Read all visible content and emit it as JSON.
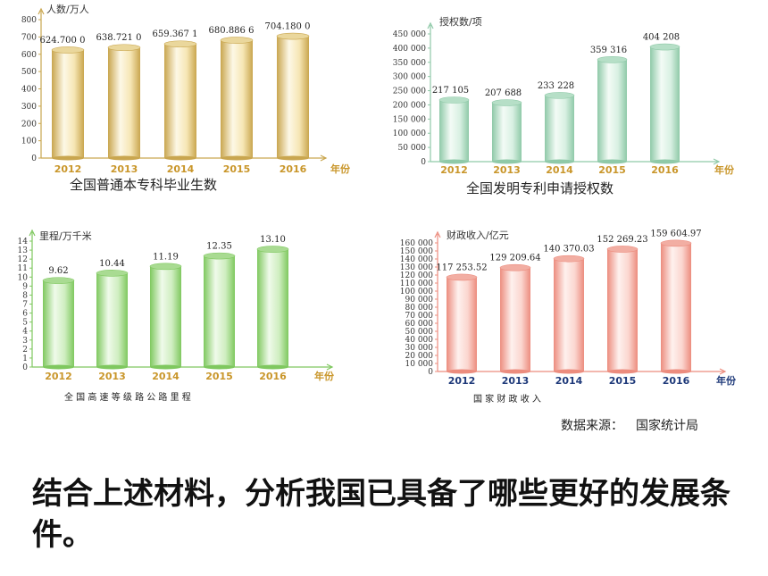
{
  "charts": [
    {
      "id": "graduates",
      "caption": "全国普通本专科毕业生数",
      "style": {
        "bar_dark": "#c9a64f",
        "bar_mid": "#f6e6b4",
        "bar_light": "#fdf8e6",
        "top": "#ead79c",
        "axis": "#c9a64f",
        "year": "#c9962a"
      }
    },
    {
      "id": "patents",
      "caption": "全国发明专利申请授权数",
      "style": {
        "bar_dark": "#8fc9a8",
        "bar_mid": "#d8f0e2",
        "bar_light": "#f3fbf6",
        "top": "#b6dfc7",
        "axis": "#8fc9a8",
        "year": "#c9962a"
      }
    },
    {
      "id": "highways",
      "caption": "全 国 高 速 等 级 路 公 路 里 程",
      "style": {
        "bar_dark": "#7fc85f",
        "bar_mid": "#cfeec0",
        "bar_light": "#effaea",
        "top": "#a9db92",
        "axis": "#7fc85f",
        "year": "#c9962a"
      }
    },
    {
      "id": "revenue",
      "caption": "国 家 财 政 收 入",
      "style": {
        "bar_dark": "#ec8c7e",
        "bar_mid": "#fbd6cf",
        "bar_light": "#fef1ee",
        "top": "#f2aea3",
        "axis": "#ec8c7e",
        "year": "#1f3a7a"
      }
    }
  ],
  "chart_data": [
    {
      "type": "bar",
      "categories": [
        "2012",
        "2013",
        "2014",
        "2015",
        "2016"
      ],
      "values": [
        624.7,
        638.721,
        659.3671,
        680.8866,
        704.18
      ],
      "value_labels": [
        "624.700 0",
        "638.721 0",
        "659.367 1",
        "680.886 6",
        "704.180 0"
      ],
      "ylabel": "人数/万人",
      "xlabel": "年份",
      "ylim": [
        0,
        800
      ],
      "yticks": [
        0,
        100,
        200,
        300,
        400,
        500,
        600,
        700,
        800
      ]
    },
    {
      "type": "bar",
      "categories": [
        "2012",
        "2013",
        "2014",
        "2015",
        "2016"
      ],
      "values": [
        217105,
        207688,
        233228,
        359316,
        404208
      ],
      "value_labels": [
        "217 105",
        "207 688",
        "233 228",
        "359 316",
        "404 208"
      ],
      "ylabel": "授权数/项",
      "xlabel": "年份",
      "ylim": [
        0,
        450000
      ],
      "yticks": [
        0,
        50000,
        100000,
        150000,
        200000,
        250000,
        300000,
        350000,
        400000,
        450000
      ],
      "ytick_labels": [
        "0",
        "50 000",
        "100 000",
        "150 000",
        "200 000",
        "250 000",
        "300 000",
        "350 000",
        "400 000",
        "450 000"
      ]
    },
    {
      "type": "bar",
      "categories": [
        "2012",
        "2013",
        "2014",
        "2015",
        "2016"
      ],
      "values": [
        9.62,
        10.44,
        11.19,
        12.35,
        13.1
      ],
      "value_labels": [
        "9.62",
        "10.44",
        "11.19",
        "12.35",
        "13.10"
      ],
      "ylabel": "里程/万千米",
      "xlabel": "年份",
      "ylim": [
        0,
        14
      ],
      "yticks": [
        0,
        1,
        2,
        3,
        4,
        5,
        6,
        7,
        8,
        9,
        10,
        11,
        12,
        13,
        14
      ]
    },
    {
      "type": "bar",
      "categories": [
        "2012",
        "2013",
        "2014",
        "2015",
        "2016"
      ],
      "values": [
        117253.52,
        129209.64,
        140370.03,
        152269.23,
        159604.97
      ],
      "value_labels": [
        "117 253.52",
        "129 209.64",
        "140 370.03",
        "152 269.23",
        "159 604.97"
      ],
      "ylabel": "财政收入/亿元",
      "xlabel": "年份",
      "ylim": [
        0,
        160000
      ],
      "yticks": [
        0,
        10000,
        20000,
        30000,
        40000,
        50000,
        60000,
        70000,
        80000,
        90000,
        100000,
        110000,
        120000,
        130000,
        140000,
        150000,
        160000
      ],
      "ytick_labels": [
        "0",
        "10 000",
        "20 000",
        "30 000",
        "40 000",
        "50 000",
        "60 000",
        "70 000",
        "80 000",
        "90 000",
        "100 000",
        "110 000",
        "120 000",
        "130 000",
        "140 000",
        "150 000",
        "160 000"
      ]
    }
  ],
  "source": {
    "label": "数据来源：",
    "value": "国家统计局"
  },
  "question": "结合上述材料，分析我国已具备了哪些更好的发展条件。"
}
